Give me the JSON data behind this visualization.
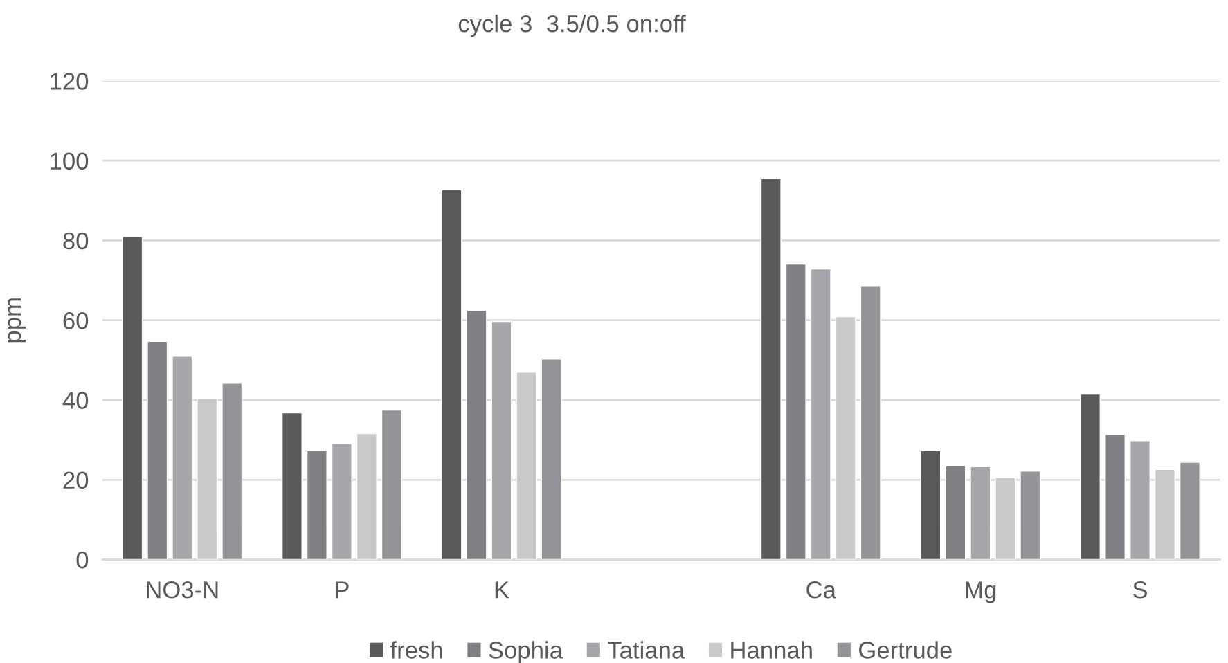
{
  "chart_data": {
    "type": "bar",
    "title": "cycle 3  3.5/0.5 on:off",
    "ylabel": "ppm",
    "categories": [
      "NO3-N",
      "P",
      "K",
      null,
      "Ca",
      "Mg",
      "S"
    ],
    "series": [
      {
        "name": "fresh",
        "color": "#595a5c",
        "values": [
          81,
          36.8,
          92.7,
          null,
          95.5,
          27.3,
          41.5
        ]
      },
      {
        "name": "Sophia",
        "color": "#7f8083",
        "values": [
          54.7,
          27.3,
          62.5,
          null,
          74.1,
          23.5,
          31.4
        ]
      },
      {
        "name": "Tatiana",
        "color": "#a5a6a9",
        "values": [
          51,
          29.1,
          59.7,
          null,
          72.9,
          23.3,
          29.8
        ]
      },
      {
        "name": "Hannah",
        "color": "#c8c9cb",
        "values": [
          40.4,
          31.6,
          47,
          null,
          60.9,
          20.6,
          22.6
        ]
      },
      {
        "name": "Gertrude",
        "color": "#939497",
        "values": [
          44.2,
          37.5,
          50.3,
          null,
          68.7,
          22.2,
          24.4
        ]
      }
    ],
    "ylim": [
      0,
      120
    ],
    "yticks": [
      0,
      20,
      40,
      60,
      80,
      100,
      120
    ],
    "grid": "y",
    "legend": "bottom"
  }
}
